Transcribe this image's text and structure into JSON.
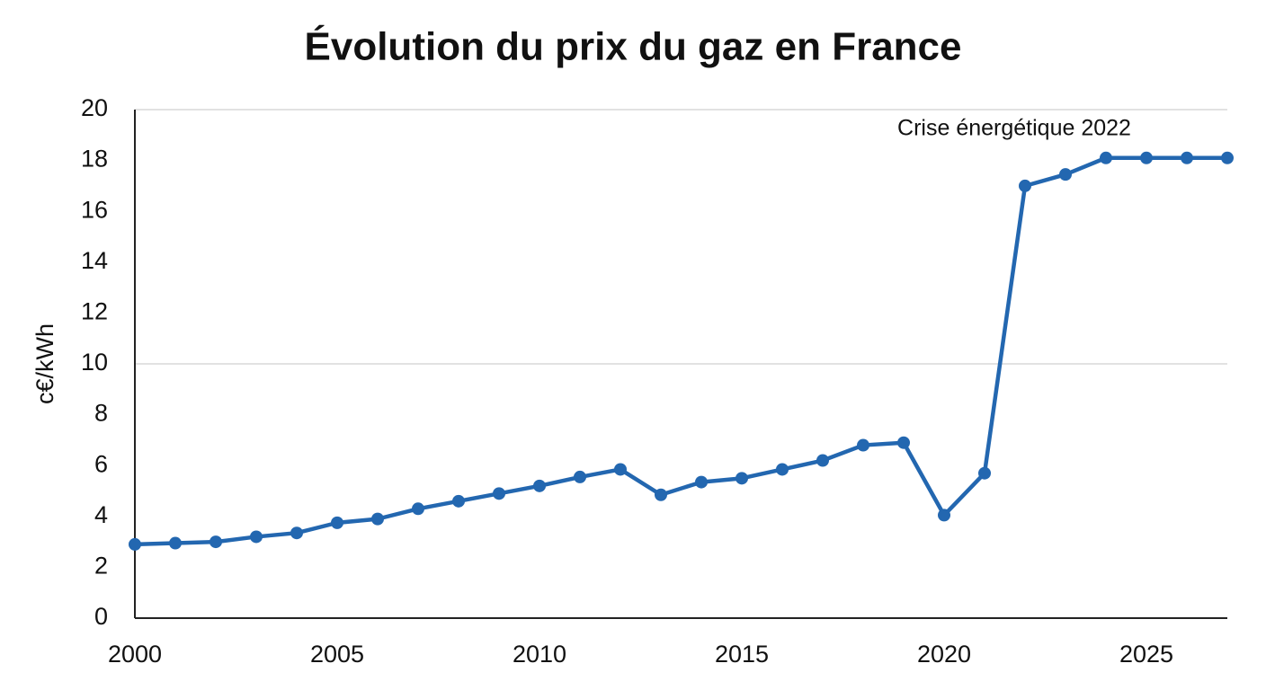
{
  "chart_data": {
    "type": "line",
    "title": "Évolution du prix du gaz en France",
    "y_label": "c€/kWh",
    "annotation": "Crise énergétique 2022",
    "x": [
      2000,
      2001,
      2002,
      2003,
      2004,
      2005,
      2006,
      2007,
      2008,
      2009,
      2010,
      2011,
      2012,
      2013,
      2014,
      2015,
      2016,
      2017,
      2018,
      2019,
      2020,
      2021,
      2022,
      2023,
      2024,
      2025,
      2026,
      2027
    ],
    "series": [
      {
        "color": "#2367b0",
        "values": [
          2.9,
          2.95,
          3.0,
          3.2,
          3.35,
          3.75,
          3.9,
          4.3,
          4.6,
          4.9,
          5.2,
          5.55,
          5.85,
          4.85,
          5.35,
          5.5,
          5.85,
          6.2,
          6.8,
          6.9,
          4.05,
          5.7,
          17.0,
          17.45,
          18.1,
          18.1,
          18.1,
          18.1
        ]
      }
    ],
    "xlim": [
      2000,
      2027
    ],
    "xticks": [
      2000,
      2005,
      2010,
      2015,
      2020,
      2025
    ],
    "ylim": [
      0,
      20
    ],
    "yticks": [
      0,
      2,
      4,
      6,
      8,
      10,
      12,
      14,
      16,
      18,
      20
    ],
    "ygrid": [
      10,
      20
    ]
  }
}
